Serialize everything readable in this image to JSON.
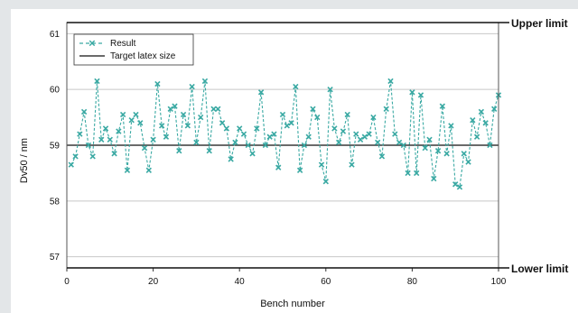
{
  "chart_data": {
    "type": "line",
    "xlabel": "Bench number",
    "ylabel": "Dv50 / nm",
    "xlim": [
      0,
      100
    ],
    "ylim": [
      56.8,
      61.2
    ],
    "xticks": [
      0,
      20,
      40,
      60,
      80,
      100
    ],
    "yticks": [
      57,
      58,
      59,
      60,
      61
    ],
    "grid": true,
    "legend_position": "top-left",
    "colors": {
      "result": "#3aa9a3",
      "target": "#111111",
      "limit": "#111111"
    },
    "series": [
      {
        "name": "Result",
        "style": "dashed-line-with-x-markers",
        "x": [
          1,
          2,
          3,
          4,
          5,
          6,
          7,
          8,
          9,
          10,
          11,
          12,
          13,
          14,
          15,
          16,
          17,
          18,
          19,
          20,
          21,
          22,
          23,
          24,
          25,
          26,
          27,
          28,
          29,
          30,
          31,
          32,
          33,
          34,
          35,
          36,
          37,
          38,
          39,
          40,
          41,
          42,
          43,
          44,
          45,
          46,
          47,
          48,
          49,
          50,
          51,
          52,
          53,
          54,
          55,
          56,
          57,
          58,
          59,
          60,
          61,
          62,
          63,
          64,
          65,
          66,
          67,
          68,
          69,
          70,
          71,
          72,
          73,
          74,
          75,
          76,
          77,
          78,
          79,
          80,
          81,
          82,
          83,
          84,
          85,
          86,
          87,
          88,
          89,
          90,
          91,
          92,
          93,
          94,
          95,
          96,
          97,
          98,
          99,
          100
        ],
        "y": [
          58.65,
          58.8,
          59.2,
          59.6,
          59.0,
          58.8,
          60.15,
          59.1,
          59.3,
          59.1,
          58.85,
          59.25,
          59.55,
          58.55,
          59.45,
          59.55,
          59.4,
          58.95,
          58.55,
          59.1,
          60.1,
          59.35,
          59.15,
          59.65,
          59.7,
          58.9,
          59.55,
          59.35,
          60.05,
          59.05,
          59.5,
          60.15,
          58.9,
          59.65,
          59.65,
          59.4,
          59.3,
          58.75,
          59.05,
          59.3,
          59.2,
          59.0,
          58.85,
          59.3,
          59.95,
          59.0,
          59.15,
          59.2,
          58.6,
          59.55,
          59.35,
          59.4,
          60.05,
          58.55,
          59.0,
          59.15,
          59.65,
          59.5,
          58.65,
          58.35,
          60.0,
          59.3,
          59.05,
          59.25,
          59.55,
          58.65,
          59.2,
          59.1,
          59.15,
          59.2,
          59.5,
          59.05,
          58.8,
          59.65,
          60.15,
          59.2,
          59.05,
          59.0,
          58.5,
          59.95,
          58.5,
          59.9,
          58.95,
          59.1,
          58.4,
          58.9,
          59.7,
          58.85,
          59.35,
          58.3,
          58.25,
          58.85,
          58.7,
          59.45,
          59.15,
          59.6,
          59.4,
          59.0,
          59.65,
          59.9
        ]
      },
      {
        "name": "Target latex size",
        "style": "solid-line",
        "x": [
          0,
          100
        ],
        "y": [
          59,
          59
        ]
      }
    ],
    "reference_lines": [
      {
        "label": "Upper limit",
        "y": 61.2
      },
      {
        "label": "Lower limit",
        "y": 56.8
      }
    ]
  }
}
